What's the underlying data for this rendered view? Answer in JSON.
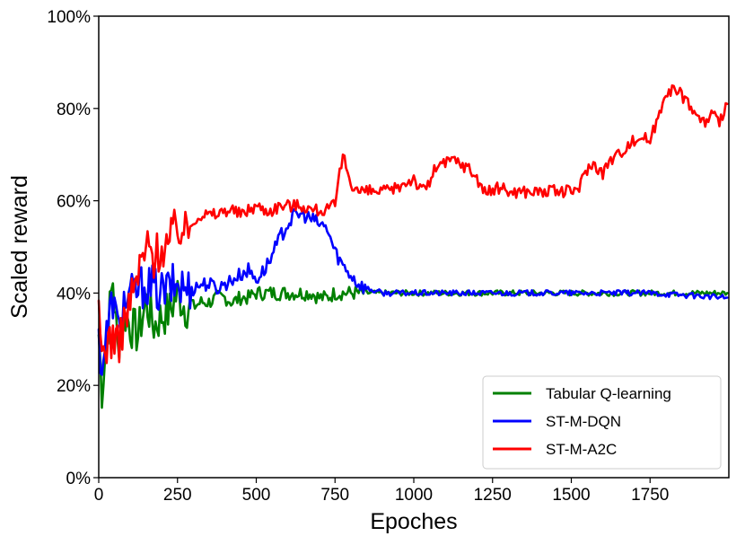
{
  "chart_data": {
    "type": "line",
    "title": "",
    "xlabel": "Epoches",
    "ylabel": "Scaled reward",
    "xlim": [
      0,
      2000
    ],
    "ylim": [
      0,
      100
    ],
    "xticks": [
      0,
      250,
      500,
      750,
      1000,
      1250,
      1500,
      1750
    ],
    "yticks": [
      0,
      20,
      40,
      60,
      80,
      100
    ],
    "ytick_labels": [
      "0%",
      "20%",
      "40%",
      "60%",
      "80%",
      "100%"
    ],
    "grid": false,
    "legend_position": "lower-right",
    "series": [
      {
        "name": "Tabular Q-learning",
        "color": "#008000",
        "points": [
          [
            0,
            31
          ],
          [
            10,
            19
          ],
          [
            25,
            30
          ],
          [
            45,
            43
          ],
          [
            60,
            28
          ],
          [
            80,
            36
          ],
          [
            100,
            33
          ],
          [
            125,
            31
          ],
          [
            150,
            38
          ],
          [
            175,
            33
          ],
          [
            200,
            35
          ],
          [
            225,
            36
          ],
          [
            250,
            40
          ],
          [
            275,
            37
          ],
          [
            300,
            37
          ],
          [
            325,
            38
          ],
          [
            350,
            38
          ],
          [
            375,
            39
          ],
          [
            400,
            39
          ],
          [
            425,
            38
          ],
          [
            450,
            39
          ],
          [
            475,
            39
          ],
          [
            500,
            40
          ],
          [
            525,
            40
          ],
          [
            550,
            40
          ],
          [
            575,
            40
          ],
          [
            600,
            40
          ],
          [
            625,
            40
          ],
          [
            650,
            40
          ],
          [
            675,
            40
          ],
          [
            700,
            39
          ],
          [
            725,
            39
          ],
          [
            750,
            40
          ],
          [
            800,
            40
          ],
          [
            850,
            40
          ],
          [
            900,
            40
          ],
          [
            1000,
            40
          ],
          [
            1250,
            40
          ],
          [
            1500,
            40
          ],
          [
            1750,
            40
          ],
          [
            1995,
            40
          ]
        ]
      },
      {
        "name": "ST-M-DQN",
        "color": "#0000ff",
        "points": [
          [
            0,
            30
          ],
          [
            10,
            24
          ],
          [
            25,
            31
          ],
          [
            45,
            39
          ],
          [
            60,
            32
          ],
          [
            80,
            38
          ],
          [
            100,
            39
          ],
          [
            125,
            41
          ],
          [
            150,
            42
          ],
          [
            175,
            41
          ],
          [
            200,
            40
          ],
          [
            225,
            41
          ],
          [
            250,
            42
          ],
          [
            275,
            41
          ],
          [
            300,
            41
          ],
          [
            325,
            42
          ],
          [
            350,
            42
          ],
          [
            375,
            41
          ],
          [
            400,
            42
          ],
          [
            425,
            43
          ],
          [
            450,
            44
          ],
          [
            475,
            45
          ],
          [
            500,
            43
          ],
          [
            525,
            45
          ],
          [
            550,
            48
          ],
          [
            575,
            52
          ],
          [
            600,
            55
          ],
          [
            625,
            57
          ],
          [
            650,
            57
          ],
          [
            675,
            56
          ],
          [
            700,
            55
          ],
          [
            725,
            54
          ],
          [
            750,
            49
          ],
          [
            775,
            46
          ],
          [
            800,
            44
          ],
          [
            825,
            42
          ],
          [
            850,
            41
          ],
          [
            900,
            40
          ],
          [
            1000,
            40
          ],
          [
            1250,
            40
          ],
          [
            1500,
            40
          ],
          [
            1750,
            40
          ],
          [
            1995,
            39
          ]
        ]
      },
      {
        "name": "ST-M-A2C",
        "color": "#ff0000",
        "points": [
          [
            0,
            34
          ],
          [
            10,
            27
          ],
          [
            25,
            29
          ],
          [
            45,
            31
          ],
          [
            60,
            28
          ],
          [
            80,
            34
          ],
          [
            100,
            38
          ],
          [
            125,
            44
          ],
          [
            150,
            50
          ],
          [
            175,
            48
          ],
          [
            200,
            50
          ],
          [
            225,
            51
          ],
          [
            250,
            55
          ],
          [
            275,
            53
          ],
          [
            300,
            56
          ],
          [
            325,
            57
          ],
          [
            350,
            57
          ],
          [
            375,
            57
          ],
          [
            400,
            58
          ],
          [
            425,
            58
          ],
          [
            450,
            57
          ],
          [
            475,
            58
          ],
          [
            500,
            59
          ],
          [
            525,
            58
          ],
          [
            550,
            58
          ],
          [
            575,
            59
          ],
          [
            600,
            59
          ],
          [
            625,
            59
          ],
          [
            650,
            59
          ],
          [
            675,
            58
          ],
          [
            700,
            58
          ],
          [
            725,
            58
          ],
          [
            750,
            59
          ],
          [
            775,
            70
          ],
          [
            800,
            64
          ],
          [
            825,
            62
          ],
          [
            850,
            62
          ],
          [
            875,
            62
          ],
          [
            900,
            62
          ],
          [
            925,
            62
          ],
          [
            950,
            63
          ],
          [
            975,
            64
          ],
          [
            1000,
            65
          ],
          [
            1025,
            62
          ],
          [
            1050,
            64
          ],
          [
            1075,
            68
          ],
          [
            1100,
            68
          ],
          [
            1125,
            69
          ],
          [
            1150,
            68
          ],
          [
            1175,
            67
          ],
          [
            1200,
            65
          ],
          [
            1225,
            62
          ],
          [
            1250,
            62
          ],
          [
            1275,
            63
          ],
          [
            1300,
            62
          ],
          [
            1325,
            62
          ],
          [
            1350,
            62
          ],
          [
            1375,
            62
          ],
          [
            1400,
            62
          ],
          [
            1425,
            62
          ],
          [
            1450,
            62
          ],
          [
            1475,
            62
          ],
          [
            1500,
            62
          ],
          [
            1525,
            63
          ],
          [
            1550,
            67
          ],
          [
            1575,
            68
          ],
          [
            1600,
            66
          ],
          [
            1625,
            69
          ],
          [
            1650,
            70
          ],
          [
            1675,
            72
          ],
          [
            1700,
            73
          ],
          [
            1725,
            74
          ],
          [
            1750,
            73
          ],
          [
            1775,
            78
          ],
          [
            1800,
            84
          ],
          [
            1825,
            84
          ],
          [
            1850,
            83
          ],
          [
            1875,
            81
          ],
          [
            1900,
            78
          ],
          [
            1925,
            77
          ],
          [
            1950,
            79
          ],
          [
            1970,
            76
          ],
          [
            1985,
            80
          ],
          [
            1995,
            81
          ]
        ]
      }
    ]
  }
}
